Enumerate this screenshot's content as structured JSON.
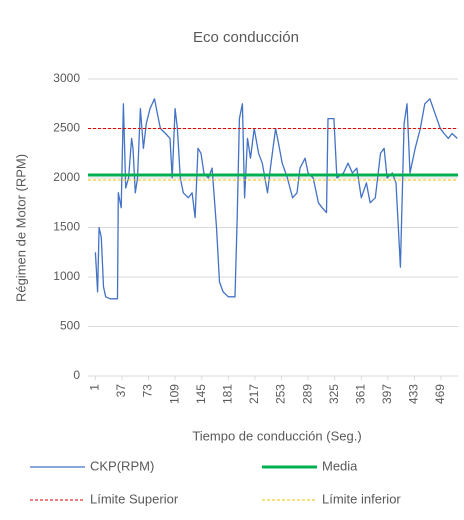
{
  "chart_data": {
    "type": "line",
    "title": "Eco conducción",
    "x_label": "Tiempo de conducción (Seg.)",
    "y_label": "Régimen de Motor (RPM)",
    "xlim": [
      -9,
      492
    ],
    "xticks": [
      1,
      37,
      73,
      109,
      145,
      181,
      217,
      253,
      289,
      325,
      361,
      397,
      433,
      469
    ],
    "ylim": [
      0,
      3000
    ],
    "yticks": [
      0,
      500,
      1000,
      1500,
      2000,
      2500,
      3000
    ],
    "grid": true,
    "legend": "bottom",
    "series": [
      {
        "name": "CKP(RPM)",
        "color": "#4472c4",
        "width": 1.3,
        "dash": false,
        "x": [
          1,
          4,
          6,
          9,
          12,
          15,
          21,
          31,
          32,
          36,
          39,
          42,
          46,
          50,
          52,
          55,
          58,
          62,
          66,
          70,
          75,
          81,
          85,
          89,
          96,
          102,
          105,
          109,
          112,
          116,
          120,
          127,
          132,
          136,
          140,
          144,
          148,
          154,
          159,
          165,
          169,
          174,
          181,
          190,
          193,
          196,
          200,
          203,
          207,
          211,
          216,
          222,
          227,
          234,
          238,
          245,
          249,
          254,
          261,
          268,
          274,
          278,
          285,
          289,
          296,
          303,
          308,
          314,
          316,
          324,
          328,
          337,
          343,
          349,
          355,
          361,
          368,
          373,
          380,
          387,
          392,
          396,
          403,
          408,
          414,
          419,
          423,
          427,
          434,
          441,
          447,
          454,
          461,
          468,
          473,
          479,
          484,
          491
        ],
        "values": [
          1250,
          850,
          1500,
          1400,
          900,
          800,
          780,
          780,
          1850,
          1700,
          2750,
          1900,
          2000,
          2400,
          2300,
          1850,
          2000,
          2700,
          2300,
          2550,
          2700,
          2800,
          2650,
          2500,
          2450,
          2400,
          2000,
          2700,
          2500,
          2000,
          1850,
          1800,
          1850,
          1600,
          2300,
          2250,
          2050,
          2000,
          2100,
          1500,
          950,
          850,
          800,
          800,
          1600,
          2600,
          2750,
          1800,
          2400,
          2200,
          2500,
          2250,
          2150,
          1850,
          2100,
          2500,
          2350,
          2150,
          2000,
          1800,
          1850,
          2100,
          2200,
          2050,
          2000,
          1750,
          1700,
          1650,
          2600,
          2600,
          2000,
          2050,
          2150,
          2050,
          2100,
          1800,
          1950,
          1750,
          1800,
          2250,
          2300,
          2000,
          2050,
          1950,
          1100,
          2550,
          2750,
          2050,
          2300,
          2500,
          2750,
          2800,
          2650,
          2500,
          2450,
          2400,
          2450,
          2400
        ]
      },
      {
        "name": "Media",
        "color": "#00b050",
        "width": 3,
        "dash": false,
        "x": [
          -9,
          492
        ],
        "values": [
          2030,
          2030
        ]
      },
      {
        "name": "Límite Superior",
        "color": "#e00000",
        "width": 1,
        "dash": true,
        "x": [
          -9,
          492
        ],
        "values": [
          2500,
          2500
        ]
      },
      {
        "name": "Límite inferior",
        "color": "#f0c000",
        "width": 1,
        "dash": true,
        "x": [
          -9,
          492
        ],
        "values": [
          1980,
          1980
        ]
      }
    ]
  }
}
